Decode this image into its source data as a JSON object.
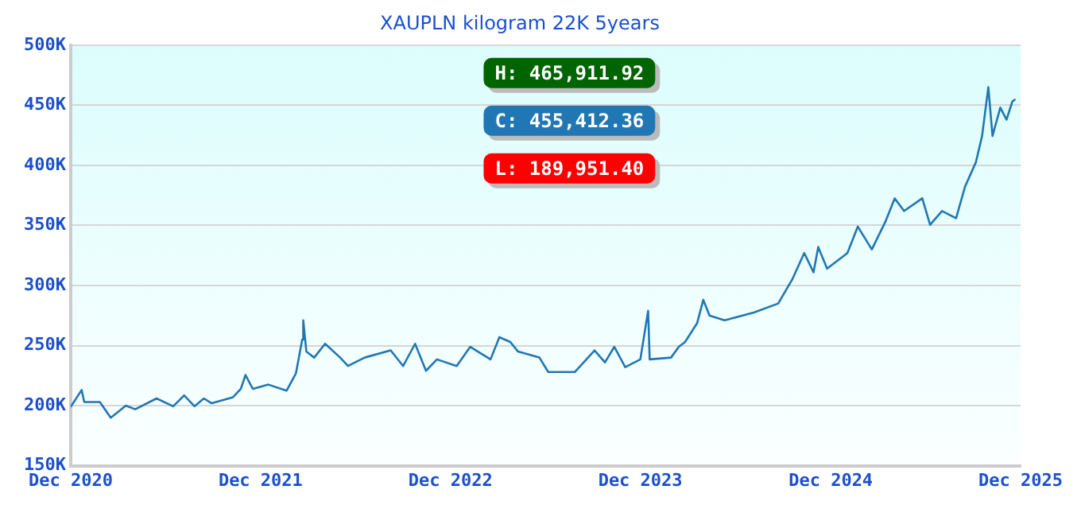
{
  "chart_data": {
    "type": "line",
    "title": "XAUPLN kilogram 22K 5years",
    "x": [
      "2020-12-01",
      "2020-12-22",
      "2020-12-27",
      "2021-01-26",
      "2021-02-16",
      "2021-03-17",
      "2021-04-04",
      "2021-05-15",
      "2021-06-16",
      "2021-07-07",
      "2021-07-27",
      "2021-08-14",
      "2021-08-29",
      "2021-10-09",
      "2021-10-24",
      "2021-11-02",
      "2021-11-16",
      "2021-12-16",
      "2022-01-20",
      "2022-02-07",
      "2022-02-19",
      "2022-02-21",
      "2022-02-27",
      "2022-03-14",
      "2022-04-04",
      "2022-05-03",
      "2022-05-18",
      "2022-06-19",
      "2022-08-08",
      "2022-09-01",
      "2022-09-24",
      "2022-10-15",
      "2022-11-05",
      "2022-12-13",
      "2023-01-08",
      "2023-02-16",
      "2023-03-05",
      "2023-03-26",
      "2023-04-10",
      "2023-05-21",
      "2023-06-07",
      "2023-07-28",
      "2023-09-04",
      "2023-09-24",
      "2023-10-12",
      "2023-11-02",
      "2023-12-01",
      "2023-12-16",
      "2023-12-19",
      "2024-01-29",
      "2024-02-13",
      "2024-02-25",
      "2024-03-19",
      "2024-03-31",
      "2024-04-12",
      "2024-05-11",
      "2024-07-06",
      "2024-08-22",
      "2024-09-18",
      "2024-10-11",
      "2024-10-29",
      "2024-11-07",
      "2024-11-24",
      "2025-01-02",
      "2025-01-22",
      "2025-02-18",
      "2025-03-16",
      "2025-04-03",
      "2025-04-21",
      "2025-05-26",
      "2025-06-10",
      "2025-07-03",
      "2025-07-30",
      "2025-08-16",
      "2025-09-06",
      "2025-09-18",
      "2025-09-30",
      "2025-10-08",
      "2025-10-23",
      "2025-11-04",
      "2025-11-15",
      "2025-11-21"
    ],
    "series": [
      {
        "color": "#2077b4",
        "values": [
          199000,
          213000,
          203000,
          203000,
          190000,
          200000,
          197000,
          206000,
          199500,
          208500,
          199500,
          206000,
          202000,
          207000,
          214000,
          225500,
          214000,
          217500,
          212500,
          227000,
          255000,
          271000,
          245000,
          240000,
          251500,
          240000,
          233000,
          240000,
          246000,
          233000,
          251500,
          229000,
          238500,
          233000,
          249000,
          238500,
          257000,
          253000,
          245000,
          240000,
          228000,
          228000,
          246000,
          236000,
          249000,
          232000,
          238500,
          279000,
          238500,
          240000,
          249000,
          253000,
          268500,
          288000,
          275000,
          271000,
          277500,
          285000,
          305000,
          327000,
          311000,
          332000,
          314000,
          327000,
          349000,
          330000,
          353000,
          372500,
          362000,
          372500,
          350500,
          362000,
          356000,
          382000,
          402500,
          424500,
          465000,
          424500,
          448000,
          438000,
          453000,
          455000
        ]
      }
    ],
    "xlim": [
      "2020-12-01",
      "2025-12-01"
    ],
    "xticks": [
      {
        "value": "2020-12-01",
        "label": "Dec 2020"
      },
      {
        "value": "2021-12-01",
        "label": "Dec 2021"
      },
      {
        "value": "2022-12-01",
        "label": "Dec 2022"
      },
      {
        "value": "2023-12-01",
        "label": "Dec 2023"
      },
      {
        "value": "2024-12-01",
        "label": "Dec 2024"
      },
      {
        "value": "2025-12-01",
        "label": "Dec 2025"
      }
    ],
    "ylim": [
      150000,
      500000
    ],
    "yticks": [
      {
        "value": 150000,
        "label": "150K"
      },
      {
        "value": 200000,
        "label": "200K"
      },
      {
        "value": 250000,
        "label": "250K"
      },
      {
        "value": 300000,
        "label": "300K"
      },
      {
        "value": 350000,
        "label": "350K"
      },
      {
        "value": 400000,
        "label": "400K"
      },
      {
        "value": 450000,
        "label": "450K"
      },
      {
        "value": 500000,
        "label": "500K"
      }
    ],
    "grid": "y",
    "legend": false,
    "marker": "none",
    "line_style": "solid",
    "annotations": [
      "H: 465,911.92",
      "C: 455,412.36",
      "L: 189,951.40"
    ]
  }
}
